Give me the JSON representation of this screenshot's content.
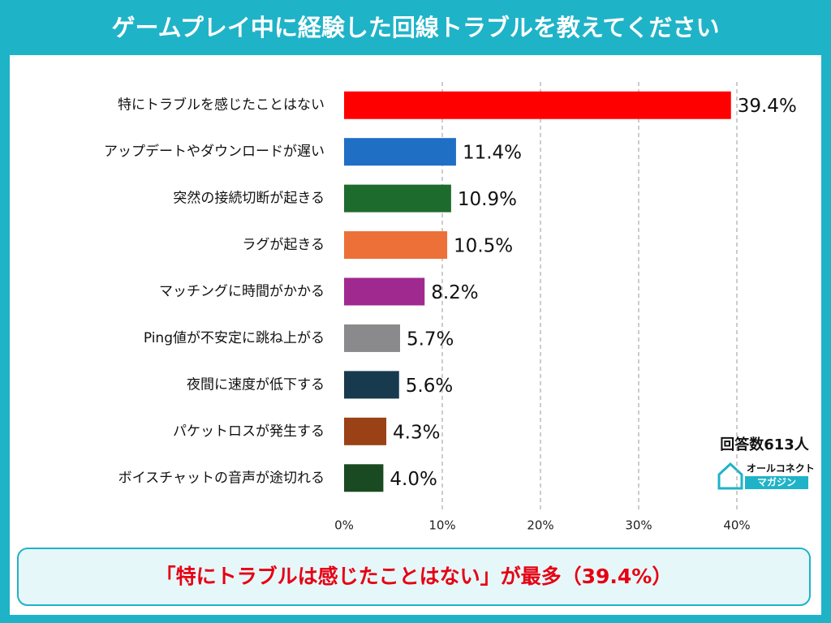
{
  "chart_data": {
    "type": "barh",
    "title": "ゲームプレイ中に経験した回線トラブルを教えてください",
    "categories": [
      "特にトラブルを感じたことはない",
      "アップデートやダウンロードが遅い",
      "突然の接続切断が起きる",
      "ラグが起きる",
      "マッチングに時間がかかる",
      "Ping値が不安定に跳ね上がる",
      "夜間に速度が低下する",
      "パケットロスが発生する",
      "ボイスチャットの音声が途切れる"
    ],
    "values": [
      39.4,
      11.4,
      10.9,
      10.5,
      8.2,
      5.7,
      5.6,
      4.3,
      4.0
    ],
    "value_labels": [
      "39.4%",
      "11.4%",
      "10.9%",
      "10.5%",
      "8.2%",
      "5.7%",
      "5.6%",
      "4.3%",
      "4.0%"
    ],
    "colors": [
      "#ff0000",
      "#1f6fc5",
      "#1e6b2e",
      "#ec7038",
      "#a0298f",
      "#8a8a8c",
      "#173a4f",
      "#9b4116",
      "#1a4a22"
    ],
    "xlim": [
      0,
      40
    ],
    "xticks": [
      {
        "value": 0,
        "label": "0%"
      },
      {
        "value": 10,
        "label": "10%"
      },
      {
        "value": 20,
        "label": "20%"
      },
      {
        "value": 30,
        "label": "30%"
      },
      {
        "value": 40,
        "label": "40%"
      }
    ],
    "grid": true,
    "respondents": "回答数613人",
    "logo_top": "オールコネクト",
    "logo_bottom": "マガジン",
    "footer": "「特にトラブルは感じたことはない」が最多（39.4%）"
  }
}
